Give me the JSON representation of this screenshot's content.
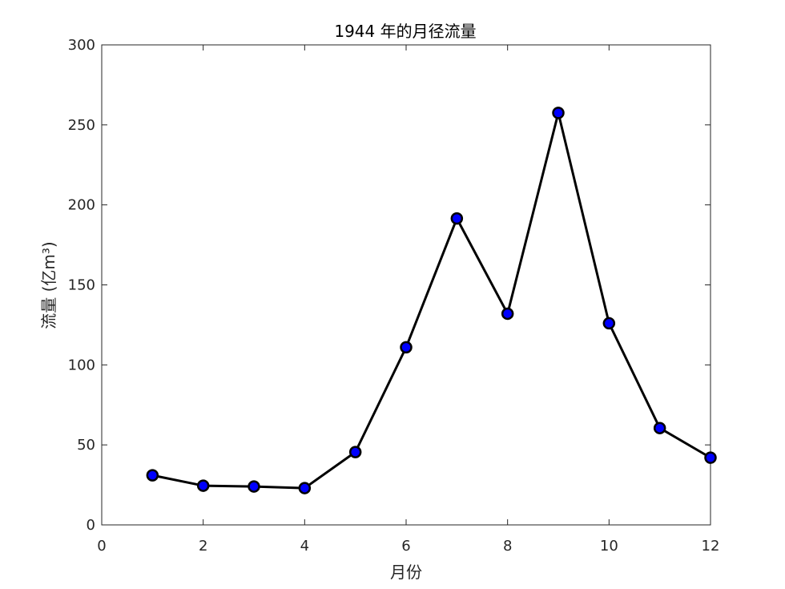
{
  "chart_data": {
    "type": "line",
    "title": "1944 年的月径流量",
    "xlabel": "月份",
    "ylabel": "流量 (亿m³)",
    "xlim": [
      0,
      12
    ],
    "ylim": [
      0,
      300
    ],
    "xticks": [
      0,
      2,
      4,
      6,
      8,
      10,
      12
    ],
    "yticks": [
      0,
      50,
      100,
      150,
      200,
      250,
      300
    ],
    "xtick_labels": [
      "0",
      "2",
      "4",
      "6",
      "8",
      "10",
      "12"
    ],
    "ytick_labels": [
      "0",
      "50",
      "100",
      "150",
      "200",
      "250",
      "300"
    ],
    "grid": false,
    "legend": "none",
    "series": [
      {
        "x": [
          1,
          2,
          3,
          4,
          5,
          6,
          7,
          8,
          9,
          10,
          11,
          12
        ],
        "values": [
          31,
          24.5,
          24,
          23,
          45.5,
          111,
          191.5,
          132,
          257.5,
          126,
          60.5,
          42
        ],
        "line_color": "#000000",
        "marker_fill": "#0000ff",
        "marker_edge": "#000000"
      }
    ]
  }
}
